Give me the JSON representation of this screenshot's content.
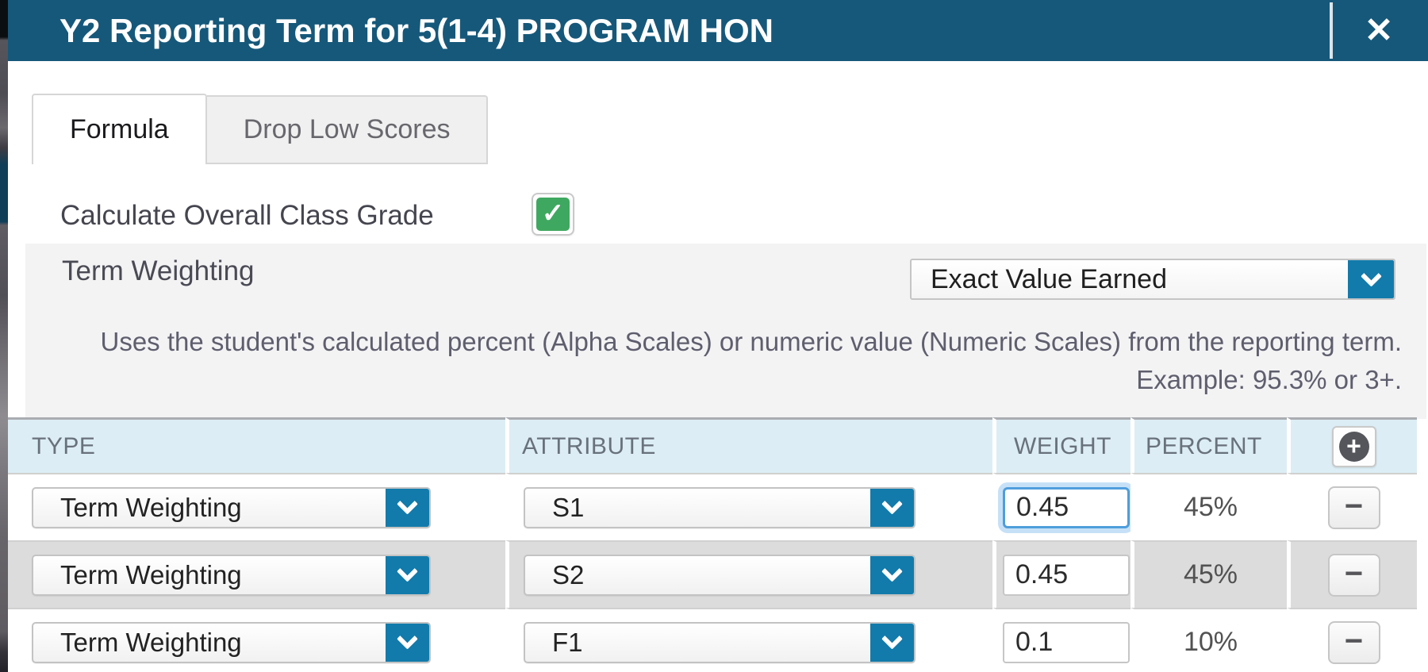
{
  "window": {
    "title": "Y2 Reporting Term for 5(1-4) PROGRAM HON",
    "close_icon": "✕"
  },
  "tabs": {
    "formula": "Formula",
    "drop_low_scores": "Drop Low Scores"
  },
  "settings": {
    "calculate_label": "Calculate Overall Class Grade",
    "calculate_checked": true,
    "check_glyph": "✓",
    "term_weighting_label": "Term Weighting",
    "term_weighting_value": "Exact Value Earned",
    "description": "Uses the student's calculated percent (Alpha Scales) or numeric value (Numeric Scales) from the reporting term. Example: 95.3% or 3+."
  },
  "table": {
    "headers": {
      "type": "TYPE",
      "attribute": "ATTRIBUTE",
      "weight": "WEIGHT",
      "percent": "PERCENT"
    },
    "add_icon": "+",
    "remove_icon": "−",
    "rows": [
      {
        "type": "Term Weighting",
        "attribute": "S1",
        "weight": "0.45",
        "percent": "45%",
        "weight_focused": true
      },
      {
        "type": "Term Weighting",
        "attribute": "S2",
        "weight": "0.45",
        "percent": "45%",
        "weight_focused": false
      },
      {
        "type": "Term Weighting",
        "attribute": "F1",
        "weight": "0.1",
        "percent": "10%",
        "weight_focused": false
      }
    ]
  },
  "colors": {
    "header_bar": "#16587a",
    "accent_blue": "#127bab",
    "checkbox_green": "#3fa860",
    "table_header_bg": "#dcedf5",
    "row_alt_bg": "#dcdcdc",
    "panel_bg": "#f3f3f4",
    "focus_ring": "#4f9edc"
  }
}
